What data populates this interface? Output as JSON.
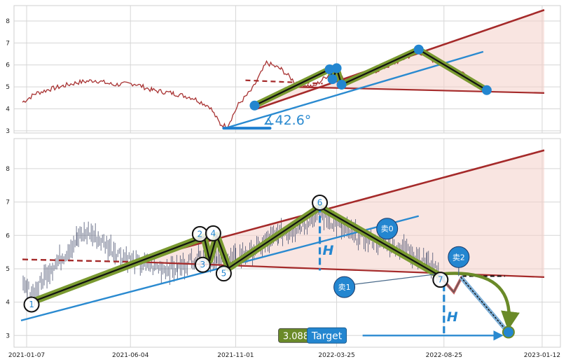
{
  "chart_data": [
    {
      "type": "line",
      "panel": "top",
      "ylim": [
        2.9,
        8.7
      ],
      "yticks": [
        3,
        4,
        5,
        6,
        7,
        8
      ],
      "x_range": [
        "2020-12-20",
        "2023-02-07"
      ],
      "grid": true,
      "series_color": "#a83232",
      "upper_channel": {
        "from": [
          "2021-12-01",
          4.0
        ],
        "to": [
          "2023-01-15",
          8.5
        ]
      },
      "lower_channel": {
        "from": [
          "2022-01-20",
          5.0
        ],
        "to": [
          "2023-01-15",
          4.72
        ]
      },
      "lower_channel_dash": {
        "from": [
          "2021-11-15",
          5.3
        ],
        "to": [
          "2022-03-05",
          5.15
        ]
      },
      "blue_line": {
        "from": [
          "2021-10-15",
          3.1
        ],
        "to": [
          "2022-10-20",
          6.6
        ]
      },
      "baseline": {
        "from": [
          "2021-10-15",
          3.12
        ],
        "to": [
          "2021-12-20",
          3.12
        ]
      },
      "angle_label": "∡42.6°",
      "zigzag": [
        [
          "2021-11-28",
          4.15
        ],
        [
          "2022-03-15",
          5.8
        ],
        [
          "2022-03-20",
          5.35
        ],
        [
          "2022-03-25",
          5.85
        ],
        [
          "2022-04-01",
          5.1
        ],
        [
          "2022-07-20",
          6.7
        ],
        [
          "2022-10-25",
          4.85
        ]
      ],
      "markers": [
        [
          "2021-11-28",
          4.15
        ],
        [
          "2022-03-15",
          5.8
        ],
        [
          "2022-03-19",
          5.35
        ],
        [
          "2022-03-25",
          5.85
        ],
        [
          "2022-04-01",
          5.1
        ],
        [
          "2022-07-20",
          6.7
        ],
        [
          "2022-10-25",
          4.85
        ]
      ],
      "price_samples": [
        [
          "2021-01-01",
          4.3
        ],
        [
          "2021-01-20",
          4.7
        ],
        [
          "2021-02-10",
          4.9
        ],
        [
          "2021-03-01",
          5.05
        ],
        [
          "2021-03-20",
          5.2
        ],
        [
          "2021-04-15",
          5.3
        ],
        [
          "2021-05-10",
          5.1
        ],
        [
          "2021-06-10",
          5.15
        ],
        [
          "2021-07-05",
          4.85
        ],
        [
          "2021-08-05",
          4.7
        ],
        [
          "2021-09-01",
          4.5
        ],
        [
          "2021-09-25",
          4.1
        ],
        [
          "2021-10-10",
          3.3
        ],
        [
          "2021-10-20",
          3.2
        ],
        [
          "2021-11-05",
          4.2
        ],
        [
          "2021-11-25",
          4.9
        ],
        [
          "2021-12-15",
          6.1
        ],
        [
          "2022-01-05",
          5.8
        ],
        [
          "2022-01-25",
          5.2
        ],
        [
          "2022-02-20",
          5.0
        ],
        [
          "2022-03-15",
          5.6
        ],
        [
          "2022-04-10",
          5.3
        ],
        [
          "2022-05-10",
          5.6
        ],
        [
          "2022-06-10",
          6.0
        ],
        [
          "2022-07-20",
          6.6
        ],
        [
          "2022-08-10",
          6.2
        ],
        [
          "2022-09-05",
          5.8
        ],
        [
          "2022-09-25",
          5.6
        ],
        [
          "2022-10-10",
          5.1
        ],
        [
          "2022-10-25",
          4.85
        ]
      ]
    },
    {
      "type": "bar",
      "panel": "bottom",
      "ylim": [
        2.65,
        8.9
      ],
      "yticks": [
        3,
        4,
        5,
        6,
        7,
        8
      ],
      "x_range": [
        "2020-12-20",
        "2023-02-07"
      ],
      "xticks": [
        "2021-01-07",
        "2021-06-04",
        "2021-11-01",
        "2022-03-25",
        "2022-08-25",
        "2023-01-12"
      ],
      "grid": true,
      "upper_channel": {
        "from": [
          "2021-06-01",
          5.18
        ],
        "to": [
          "2023-01-15",
          8.55
        ]
      },
      "lower_channel": {
        "from": [
          "2021-06-20",
          5.2
        ],
        "to": [
          "2023-01-15",
          4.75
        ]
      },
      "lower_channel_dash": {
        "from": [
          "2021-01-01",
          5.28
        ],
        "to": [
          "2021-06-20",
          5.2
        ]
      },
      "blue_line": {
        "from": [
          "2020-12-30",
          3.45
        ],
        "to": [
          "2022-07-20",
          6.58
        ]
      },
      "zigzag": [
        [
          "2021-01-20",
          4.05
        ],
        [
          "2021-09-17",
          5.95
        ],
        [
          "2021-09-25",
          5.25
        ],
        [
          "2021-10-05",
          6.0
        ],
        [
          "2021-10-22",
          5.02
        ],
        [
          "2022-03-01",
          6.85
        ],
        [
          "2022-08-18",
          4.8
        ]
      ],
      "point_labels": [
        {
          "label": "1",
          "at": [
            "2021-01-14",
            3.93
          ]
        },
        {
          "label": "2",
          "at": [
            "2021-09-11",
            6.04
          ]
        },
        {
          "label": "3",
          "at": [
            "2021-09-15",
            5.12
          ]
        },
        {
          "label": "4",
          "at": [
            "2021-09-30",
            6.06
          ]
        },
        {
          "label": "5",
          "at": [
            "2021-10-15",
            4.86
          ]
        },
        {
          "label": "6",
          "at": [
            "2022-03-01",
            6.98
          ]
        },
        {
          "label": "7",
          "at": [
            "2022-08-20",
            4.67
          ]
        }
      ],
      "sell_labels": [
        {
          "label": "卖0",
          "at": [
            "2022-06-05",
            6.2
          ]
        },
        {
          "label": "卖1",
          "at": [
            "2022-04-05",
            4.45
          ]
        },
        {
          "label": "卖2",
          "at": [
            "2022-09-15",
            5.35
          ]
        }
      ],
      "height_marks": [
        {
          "label": "H",
          "x": "2022-03-01",
          "from": 6.9,
          "to": 4.95
        },
        {
          "label": "H",
          "x": "2022-08-25",
          "from": 4.85,
          "to": 3.0
        }
      ],
      "target_label": "Target",
      "target_value": "3.088",
      "target_point": [
        "2022-11-25",
        3.1
      ],
      "ohlc_samples": [
        [
          "2021-01-02",
          4.4
        ],
        [
          "2021-01-20",
          4.3
        ],
        [
          "2021-02-05",
          4.9
        ],
        [
          "2021-03-01",
          5.4
        ],
        [
          "2021-03-20",
          5.9
        ],
        [
          "2021-04-05",
          6.1
        ],
        [
          "2021-04-25",
          5.8
        ],
        [
          "2021-05-15",
          5.5
        ],
        [
          "2021-06-10",
          5.2
        ],
        [
          "2021-07-10",
          5.05
        ],
        [
          "2021-08-10",
          5.0
        ],
        [
          "2021-09-10",
          5.4
        ],
        [
          "2021-10-05",
          5.2
        ],
        [
          "2021-11-01",
          5.3
        ],
        [
          "2021-12-01",
          5.6
        ],
        [
          "2022-01-01",
          6.0
        ],
        [
          "2022-02-01",
          6.3
        ],
        [
          "2022-03-01",
          6.7
        ],
        [
          "2022-04-01",
          6.2
        ],
        [
          "2022-05-01",
          5.9
        ],
        [
          "2022-06-01",
          5.8
        ],
        [
          "2022-07-01",
          5.6
        ],
        [
          "2022-08-01",
          5.2
        ],
        [
          "2022-08-20",
          4.9
        ]
      ]
    }
  ]
}
